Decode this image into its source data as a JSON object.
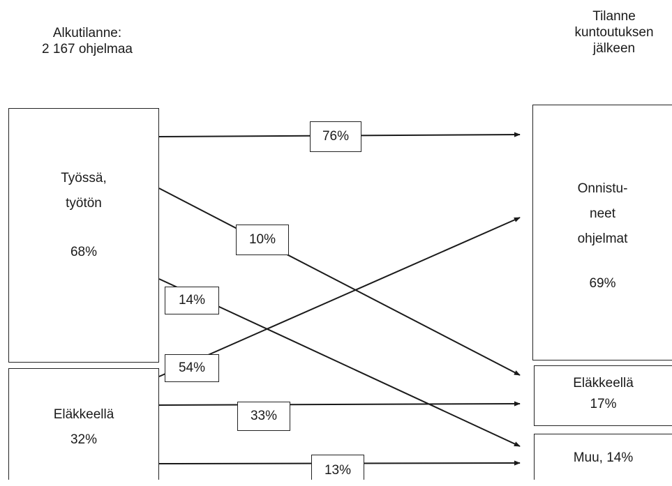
{
  "header_left": {
    "line1": "Alkutilanne:",
    "line2": "2 167 ohjelmaa"
  },
  "header_right": {
    "line1": "Tilanne",
    "line2": "kuntoutuksen",
    "line3": "jälkeen"
  },
  "start_boxes": {
    "working": {
      "line1": "Työssä,",
      "line2": "työtön",
      "value": "68%"
    },
    "retired": {
      "label": "Eläkkeellä",
      "value": "32%"
    }
  },
  "end_boxes": {
    "successful": {
      "line1": "Onnistu-",
      "line2": "neet",
      "line3": "ohjelmat",
      "value": "69%"
    },
    "retired": {
      "label": "Eläkkeellä",
      "value": "17%"
    },
    "other": {
      "label": "Muu, 14%"
    }
  },
  "flows": {
    "working_to_successful": "76%",
    "working_to_retired": "10%",
    "working_to_other": "14%",
    "retired_to_successful": "54%",
    "retired_to_retired": "33%",
    "retired_to_other": "13%"
  },
  "colors": {
    "line": "#1a1a1a"
  }
}
